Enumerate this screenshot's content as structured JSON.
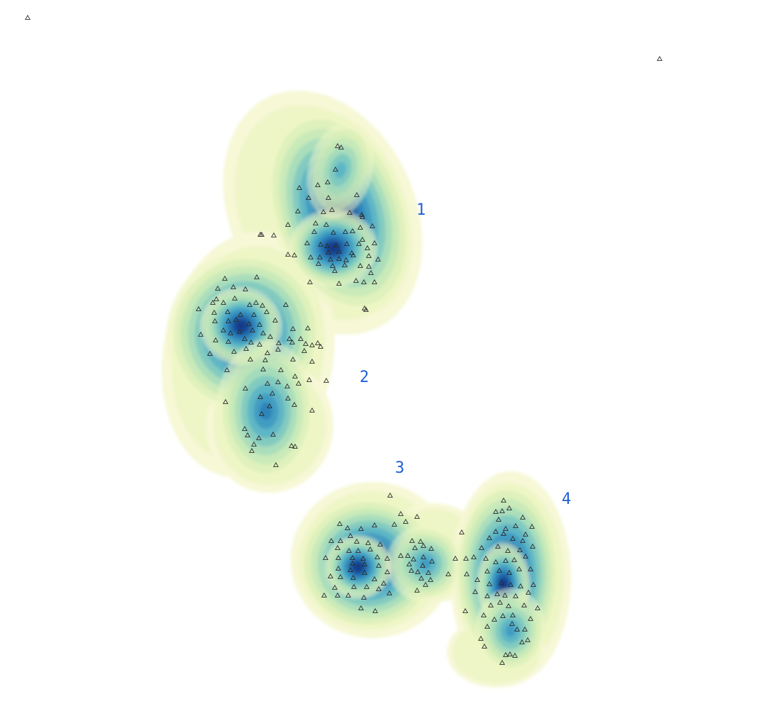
{
  "chart_data": {
    "type": "scatter",
    "title": "",
    "xlabel": "",
    "ylabel": "",
    "description_style": "kernel density contours (yellow-green-blue) with triangle point markers",
    "colors": {
      "low": "#f6f8d6",
      "mid1": "#d3edb5",
      "mid2": "#8fd3bd",
      "mid3": "#3fa5c8",
      "mid4": "#1d6fb3",
      "high": "#102c7e",
      "label": "#1f5fd6",
      "marker": "#2b2b2b"
    },
    "cluster_labels": [
      "1",
      "2",
      "3",
      "4"
    ],
    "clusters": [
      {
        "label": "1",
        "points": [
          [
            476,
            206
          ],
          [
            481,
            208
          ],
          [
            473,
            239
          ],
          [
            462,
            257
          ],
          [
            448,
            261
          ],
          [
            422,
            265
          ],
          [
            435,
            279
          ],
          [
            463,
            279
          ],
          [
            503,
            275
          ],
          [
            420,
            298
          ],
          [
            456,
            299
          ],
          [
            468,
            296
          ],
          [
            493,
            300
          ],
          [
            510,
            303
          ],
          [
            511,
            306
          ],
          [
            406,
            317
          ],
          [
            445,
            315
          ],
          [
            460,
            317
          ],
          [
            508,
            321
          ],
          [
            525,
            319
          ],
          [
            443,
            327
          ],
          [
            470,
            328
          ],
          [
            487,
            327
          ],
          [
            497,
            326
          ],
          [
            511,
            338
          ],
          [
            528,
            343
          ],
          [
            433,
            343
          ],
          [
            452,
            345
          ],
          [
            461,
            347
          ],
          [
            474,
            346
          ],
          [
            489,
            344
          ],
          [
            506,
            344
          ],
          [
            518,
            350
          ],
          [
            463,
            356
          ],
          [
            478,
            355
          ],
          [
            496,
            357
          ],
          [
            520,
            361
          ],
          [
            438,
            363
          ],
          [
            451,
            363
          ],
          [
            466,
            366
          ],
          [
            478,
            365
          ],
          [
            488,
            367
          ],
          [
            498,
            360
          ],
          [
            533,
            366
          ],
          [
            449,
            372
          ],
          [
            469,
            375
          ],
          [
            486,
            374
          ],
          [
            508,
            375
          ],
          [
            520,
            376
          ],
          [
            472,
            382
          ],
          [
            523,
            385
          ],
          [
            437,
            398
          ],
          [
            478,
            400
          ],
          [
            502,
            396
          ],
          [
            513,
            398
          ],
          [
            528,
            398
          ],
          [
            367,
            331
          ],
          [
            369,
            331
          ],
          [
            386,
            332
          ],
          [
            406,
            359
          ],
          [
            415,
            360
          ],
          [
            514,
            435
          ],
          [
            516,
            437
          ]
        ]
      },
      {
        "label": "2",
        "points": [
          [
            317,
            393
          ],
          [
            362,
            391
          ],
          [
            307,
            407
          ],
          [
            329,
            405
          ],
          [
            346,
            408
          ],
          [
            305,
            422
          ],
          [
            300,
            427
          ],
          [
            315,
            427
          ],
          [
            331,
            421
          ],
          [
            352,
            430
          ],
          [
            361,
            427
          ],
          [
            370,
            431
          ],
          [
            280,
            436
          ],
          [
            302,
            441
          ],
          [
            321,
            440
          ],
          [
            339,
            444
          ],
          [
            358,
            444
          ],
          [
            376,
            440
          ],
          [
            403,
            430
          ],
          [
            303,
            453
          ],
          [
            322,
            453
          ],
          [
            333,
            451
          ],
          [
            351,
            457
          ],
          [
            366,
            458
          ],
          [
            388,
            452
          ],
          [
            413,
            464
          ],
          [
            434,
            463
          ],
          [
            283,
            472
          ],
          [
            315,
            466
          ],
          [
            325,
            470
          ],
          [
            338,
            468
          ],
          [
            356,
            466
          ],
          [
            371,
            470
          ],
          [
            381,
            475
          ],
          [
            408,
            478
          ],
          [
            424,
            478
          ],
          [
            304,
            480
          ],
          [
            322,
            482
          ],
          [
            345,
            478
          ],
          [
            354,
            483
          ],
          [
            366,
            486
          ],
          [
            393,
            484
          ],
          [
            412,
            483
          ],
          [
            431,
            485
          ],
          [
            440,
            487
          ],
          [
            296,
            499
          ],
          [
            330,
            496
          ],
          [
            347,
            492
          ],
          [
            377,
            498
          ],
          [
            392,
            493
          ],
          [
            429,
            495
          ],
          [
            448,
            484
          ],
          [
            452,
            489
          ],
          [
            353,
            507
          ],
          [
            374,
            508
          ],
          [
            413,
            507
          ],
          [
            440,
            510
          ],
          [
            320,
            522
          ],
          [
            371,
            521
          ],
          [
            396,
            522
          ],
          [
            416,
            531
          ],
          [
            436,
            536
          ],
          [
            377,
            541
          ],
          [
            392,
            539
          ],
          [
            405,
            545
          ],
          [
            421,
            541
          ],
          [
            460,
            537
          ],
          [
            346,
            548
          ],
          [
            384,
            555
          ],
          [
            367,
            560
          ],
          [
            406,
            562
          ],
          [
            318,
            567
          ],
          [
            380,
            573
          ],
          [
            415,
            571
          ],
          [
            440,
            579
          ],
          [
            369,
            584
          ],
          [
            345,
            605
          ],
          [
            349,
            614
          ],
          [
            365,
            618
          ],
          [
            385,
            613
          ],
          [
            358,
            627
          ],
          [
            355,
            636
          ],
          [
            411,
            629
          ],
          [
            416,
            630
          ],
          [
            389,
            656
          ]
        ]
      },
      {
        "label": "3",
        "points": [
          [
            550,
            699
          ],
          [
            565,
            725
          ],
          [
            588,
            729
          ],
          [
            572,
            736
          ],
          [
            528,
            741
          ],
          [
            556,
            740
          ],
          [
            479,
            739
          ],
          [
            490,
            745
          ],
          [
            509,
            746
          ],
          [
            494,
            756
          ],
          [
            467,
            763
          ],
          [
            480,
            763
          ],
          [
            503,
            764
          ],
          [
            519,
            766
          ],
          [
            536,
            768
          ],
          [
            581,
            763
          ],
          [
            593,
            764
          ],
          [
            608,
            774
          ],
          [
            585,
            773
          ],
          [
            597,
            770
          ],
          [
            476,
            773
          ],
          [
            492,
            777
          ],
          [
            505,
            777
          ],
          [
            522,
            775
          ],
          [
            459,
            787
          ],
          [
            477,
            787
          ],
          [
            497,
            787
          ],
          [
            512,
            788
          ],
          [
            532,
            786
          ],
          [
            546,
            788
          ],
          [
            565,
            784
          ],
          [
            575,
            784
          ],
          [
            583,
            789
          ],
          [
            597,
            786
          ],
          [
            609,
            792
          ],
          [
            497,
            795
          ],
          [
            514,
            796
          ],
          [
            534,
            798
          ],
          [
            577,
            796
          ],
          [
            596,
            798
          ],
          [
            477,
            802
          ],
          [
            494,
            804
          ],
          [
            514,
            808
          ],
          [
            546,
            807
          ],
          [
            580,
            805
          ],
          [
            589,
            807
          ],
          [
            604,
            808
          ],
          [
            632,
            810
          ],
          [
            466,
            813
          ],
          [
            480,
            814
          ],
          [
            498,
            815
          ],
          [
            528,
            817
          ],
          [
            541,
            823
          ],
          [
            594,
            816
          ],
          [
            607,
            818
          ],
          [
            472,
            829
          ],
          [
            499,
            828
          ],
          [
            517,
            828
          ],
          [
            534,
            831
          ],
          [
            588,
            833
          ],
          [
            600,
            825
          ],
          [
            457,
            840
          ],
          [
            476,
            840
          ],
          [
            491,
            840
          ],
          [
            513,
            843
          ],
          [
            509,
            858
          ],
          [
            529,
            862
          ],
          [
            549,
            837
          ]
        ]
      },
      {
        "label": "4",
        "points": [
          [
            710,
            706
          ],
          [
            699,
            722
          ],
          [
            708,
            721
          ],
          [
            718,
            717
          ],
          [
            703,
            733
          ],
          [
            737,
            730
          ],
          [
            713,
            746
          ],
          [
            727,
            742
          ],
          [
            750,
            743
          ],
          [
            651,
            751
          ],
          [
            699,
            750
          ],
          [
            710,
            753
          ],
          [
            741,
            754
          ],
          [
            690,
            759
          ],
          [
            723,
            760
          ],
          [
            737,
            763
          ],
          [
            679,
            773
          ],
          [
            702,
            771
          ],
          [
            716,
            777
          ],
          [
            733,
            776
          ],
          [
            751,
            771
          ],
          [
            668,
            786
          ],
          [
            685,
            788
          ],
          [
            699,
            793
          ],
          [
            713,
            791
          ],
          [
            725,
            790
          ],
          [
            741,
            785
          ],
          [
            642,
            788
          ],
          [
            657,
            788
          ],
          [
            687,
            806
          ],
          [
            704,
            805
          ],
          [
            718,
            808
          ],
          [
            732,
            803
          ],
          [
            748,
            803
          ],
          [
            658,
            810
          ],
          [
            673,
            818
          ],
          [
            690,
            824
          ],
          [
            707,
            822
          ],
          [
            720,
            825
          ],
          [
            734,
            827
          ],
          [
            752,
            825
          ],
          [
            670,
            835
          ],
          [
            687,
            841
          ],
          [
            701,
            838
          ],
          [
            712,
            840
          ],
          [
            727,
            841
          ],
          [
            745,
            836
          ],
          [
            656,
            862
          ],
          [
            692,
            854
          ],
          [
            705,
            850
          ],
          [
            717,
            855
          ],
          [
            739,
            854
          ],
          [
            758,
            858
          ],
          [
            682,
            868
          ],
          [
            697,
            874
          ],
          [
            709,
            869
          ],
          [
            723,
            868
          ],
          [
            748,
            873
          ],
          [
            722,
            880
          ],
          [
            729,
            888
          ],
          [
            740,
            888
          ],
          [
            687,
            884
          ],
          [
            736,
            906
          ],
          [
            744,
            903
          ],
          [
            678,
            901
          ],
          [
            683,
            912
          ],
          [
            713,
            924
          ],
          [
            719,
            923
          ],
          [
            726,
            925
          ],
          [
            708,
            935
          ]
        ]
      },
      {
        "label": "",
        "points": [
          [
            39,
            25
          ],
          [
            930,
            83
          ]
        ]
      }
    ]
  }
}
